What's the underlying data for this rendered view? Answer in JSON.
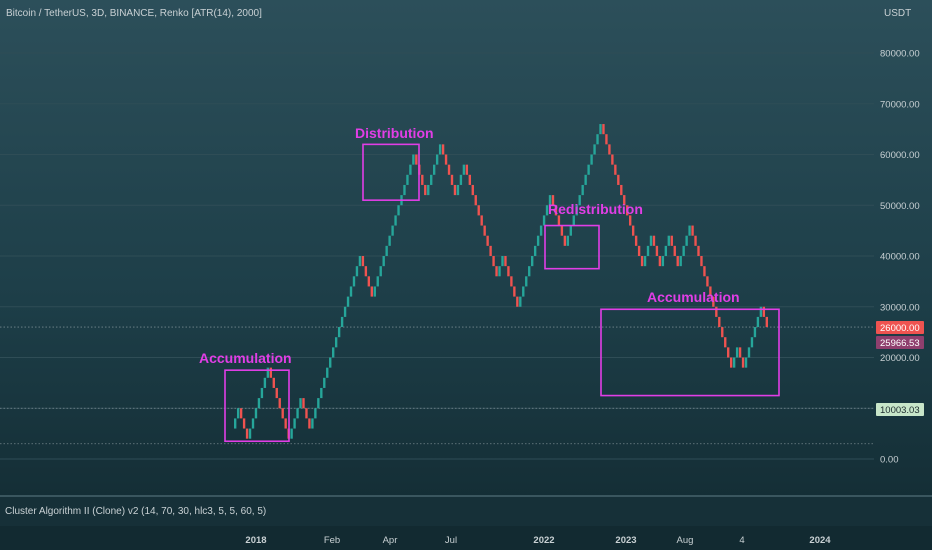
{
  "header": {
    "symbol_title": "Bitcoin / TetherUS, 3D, BINANCE, Renko [ATR(14), 2000]",
    "currency": "USDT"
  },
  "indicator": {
    "label": "Cluster Algorithm II (Clone) v2 (14, 70, 30, hlc3, 5, 5, 60, 5)"
  },
  "colors": {
    "background": "#17323a",
    "up_brick": "#26a69a",
    "down_brick": "#ef5350",
    "annotation": "#e13ee6",
    "price_tag_current": "#ef5350",
    "price_tag_mid": "#8f3f6e",
    "price_tag_level": "#c8e6c9"
  },
  "chart_data": {
    "type": "renko",
    "title": "Bitcoin / TetherUS, 3D, BINANCE, Renko [ATR(14), 2000]",
    "brick_size": 2000,
    "ylim": [
      -5000,
      88000
    ],
    "y_ticks": [
      0,
      10000,
      20000,
      30000,
      40000,
      50000,
      60000,
      70000,
      80000
    ],
    "y_tick_labels": [
      "0.00",
      "10000.00",
      "20000.00",
      "30000.00",
      "40000.00",
      "50000.00",
      "60000.00",
      "70000.00",
      "80000.00"
    ],
    "x_tick_labels": [
      "2018",
      "Feb",
      "Apr",
      "Jul",
      "2022",
      "Aug",
      "2023",
      "Aug",
      "4",
      "2024"
    ],
    "x_tick_bold": [
      true,
      false,
      false,
      false,
      true,
      false,
      true,
      false,
      false,
      true
    ],
    "x_tick_positions": [
      35,
      108,
      155,
      203,
      277,
      346,
      350,
      388,
      441,
      492
    ],
    "legs": [
      {
        "dir": "up",
        "to": 10000
      },
      {
        "dir": "down",
        "to": 4000
      },
      {
        "dir": "up",
        "to": 18000
      },
      {
        "dir": "down",
        "to": 4000
      },
      {
        "dir": "up",
        "to": 12000
      },
      {
        "dir": "down",
        "to": 6000
      },
      {
        "dir": "up",
        "to": 40000
      },
      {
        "dir": "down",
        "to": 32000
      },
      {
        "dir": "up",
        "to": 60000
      },
      {
        "dir": "down",
        "to": 52000
      },
      {
        "dir": "up",
        "to": 62000
      },
      {
        "dir": "down",
        "to": 52000
      },
      {
        "dir": "up",
        "to": 58000
      },
      {
        "dir": "down",
        "to": 36000
      },
      {
        "dir": "up",
        "to": 40000
      },
      {
        "dir": "down",
        "to": 30000
      },
      {
        "dir": "up",
        "to": 52000
      },
      {
        "dir": "down",
        "to": 42000
      },
      {
        "dir": "up",
        "to": 66000
      },
      {
        "dir": "down",
        "to": 38000
      },
      {
        "dir": "up",
        "to": 44000
      },
      {
        "dir": "down",
        "to": 38000
      },
      {
        "dir": "up",
        "to": 44000
      },
      {
        "dir": "down",
        "to": 38000
      },
      {
        "dir": "up",
        "to": 46000
      },
      {
        "dir": "down",
        "to": 18000
      },
      {
        "dir": "up",
        "to": 22000
      },
      {
        "dir": "down",
        "to": 18000
      },
      {
        "dir": "up",
        "to": 30000
      },
      {
        "dir": "down",
        "to": 26000
      }
    ],
    "price_tags": [
      {
        "value": 26000,
        "label": "26000.00",
        "kind": "current"
      },
      {
        "value": 25966.53,
        "label": "25966.53",
        "kind": "mid"
      },
      {
        "value": 10003.03,
        "label": "10003.03",
        "kind": "level"
      }
    ],
    "horizontal_lines": [
      26000,
      10003.03,
      3000
    ],
    "annotations": [
      {
        "label": "Accumulation",
        "box_from": 0,
        "box_to": 16,
        "y_low": 3500,
        "y_high": 17500
      },
      {
        "label": "Distribution",
        "box_from": 0,
        "box_to": 13,
        "y_low": 51000,
        "y_high": 62000
      },
      {
        "label": "Redistribution",
        "box_from": 0,
        "box_to": 13,
        "y_low": 37500,
        "y_high": 46000
      },
      {
        "label": "Accumulation",
        "box_from": 0,
        "box_to": 0,
        "y_low": 12500,
        "y_high": 29500
      }
    ]
  }
}
